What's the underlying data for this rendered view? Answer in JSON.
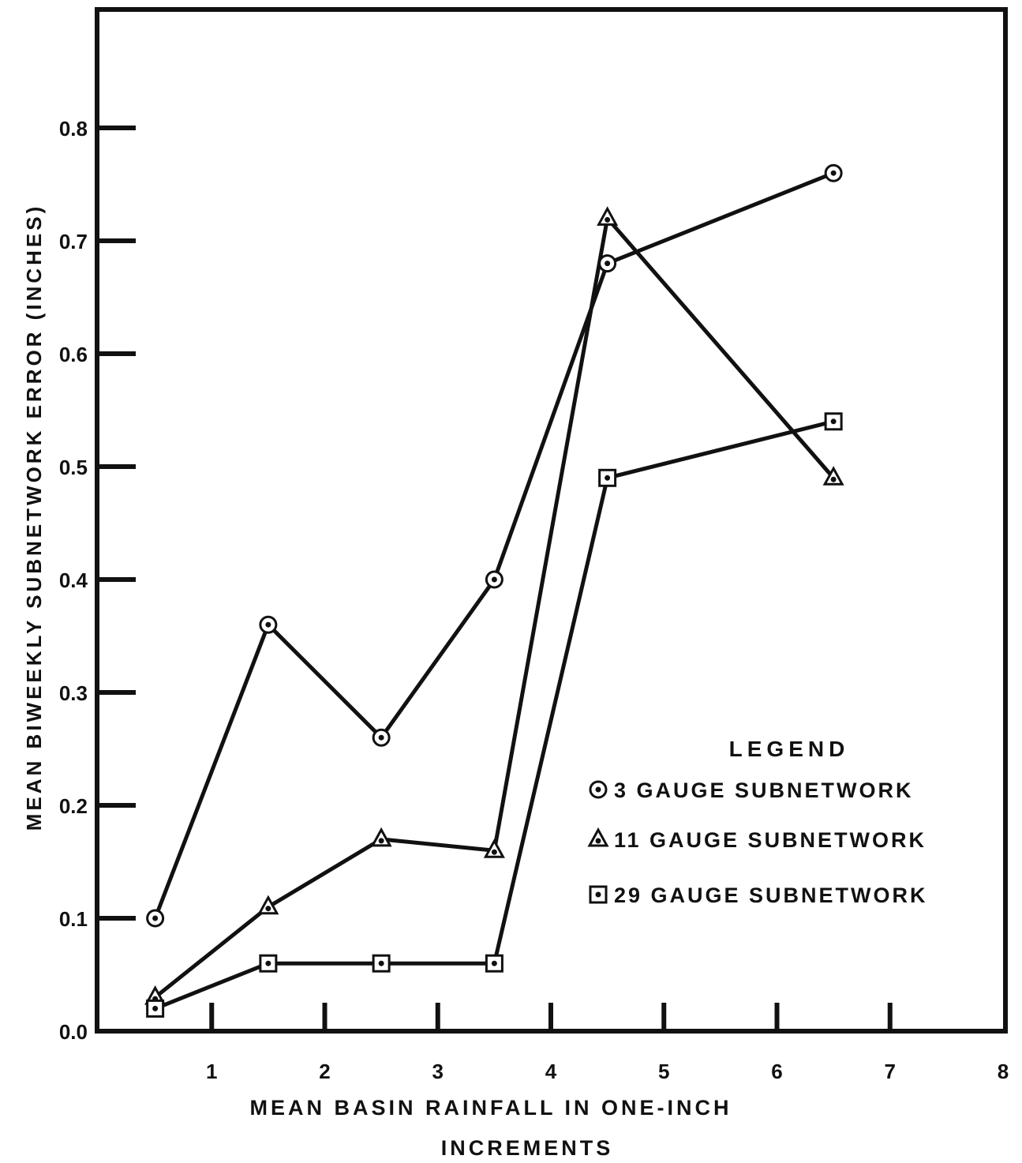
{
  "chart_data": {
    "type": "line",
    "title": "",
    "xlabel_lines": [
      "MEAN  BASIN RAINFALL IN ONE-INCH",
      "INCREMENTS"
    ],
    "ylabel": "MEAN  BIWEEKLY  SUBNETWORK  ERROR  (INCHES)",
    "xlim": [
      0,
      8
    ],
    "ylim": [
      0,
      0.9
    ],
    "x_ticks": [
      "1",
      "2",
      "3",
      "4",
      "5",
      "6",
      "7",
      "8"
    ],
    "y_ticks": [
      "0.0",
      "0.1",
      "0.2",
      "0.3",
      "0.4",
      "0.5",
      "0.6",
      "0.7",
      "0.8"
    ],
    "grid": false,
    "legend_title": "LEGEND",
    "legend_position": "right",
    "series": [
      {
        "name": "3  GAUGE SUBNETWORK",
        "legend_label": "3  GAUGE SUBNETWORK",
        "marker": "circle",
        "points": [
          [
            0.5,
            0.1
          ],
          [
            1.5,
            0.36
          ],
          [
            2.5,
            0.26
          ],
          [
            3.5,
            0.4
          ],
          [
            4.5,
            0.68
          ],
          [
            6.5,
            0.76
          ]
        ]
      },
      {
        "name": "11 GAUGE SUBNETWORK",
        "legend_label": "11 GAUGE SUBNETWORK",
        "marker": "triangle",
        "points": [
          [
            0.5,
            0.03
          ],
          [
            1.5,
            0.11
          ],
          [
            2.5,
            0.17
          ],
          [
            3.5,
            0.16
          ],
          [
            4.5,
            0.72
          ],
          [
            6.5,
            0.49
          ]
        ]
      },
      {
        "name": "29 GAUGE SUBNETWORK",
        "legend_label": "29 GAUGE SUBNETWORK",
        "marker": "square",
        "points": [
          [
            0.5,
            0.02
          ],
          [
            1.5,
            0.06
          ],
          [
            2.5,
            0.06
          ],
          [
            3.5,
            0.06
          ],
          [
            4.5,
            0.49
          ],
          [
            6.5,
            0.54
          ]
        ]
      }
    ]
  }
}
